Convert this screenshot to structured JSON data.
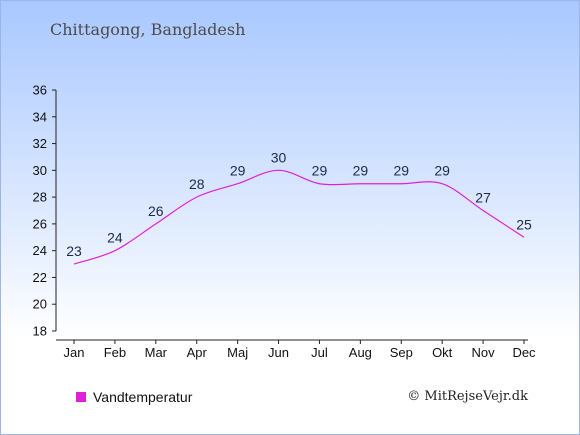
{
  "chart_data": {
    "type": "line",
    "title": "Chittagong, Bangladesh",
    "categories": [
      "Jan",
      "Feb",
      "Mar",
      "Apr",
      "Maj",
      "Jun",
      "Jul",
      "Aug",
      "Sep",
      "Okt",
      "Nov",
      "Dec"
    ],
    "series": [
      {
        "name": "Vandtemperatur",
        "values": [
          23,
          24,
          26,
          28,
          29,
          30,
          29,
          29,
          29,
          29,
          27,
          25
        ],
        "color": "#e020d8"
      }
    ],
    "ylim": [
      18,
      36
    ],
    "yticks": [
      18,
      20,
      22,
      24,
      26,
      28,
      30,
      32,
      34,
      36
    ],
    "grid": false,
    "legend_position": "bottom-left"
  },
  "legend": {
    "label": "Vandtemperatur",
    "color": "#e020d8"
  },
  "credit": "© MitRejseVejr.dk"
}
